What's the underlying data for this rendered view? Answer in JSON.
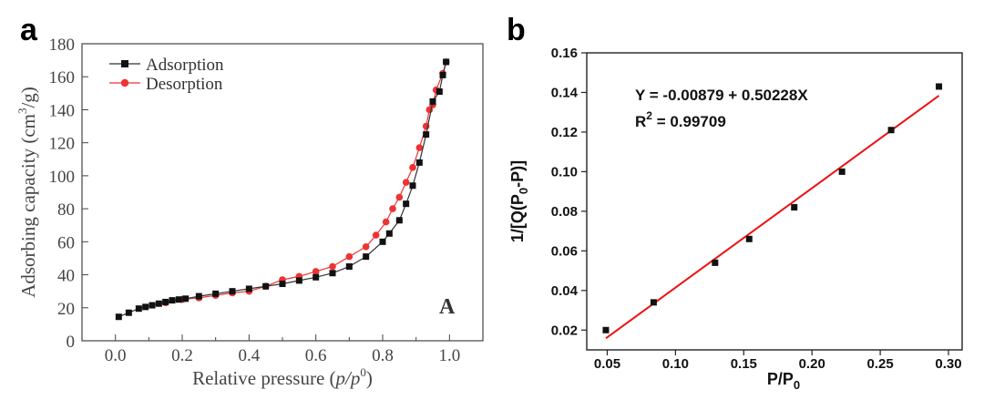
{
  "chart_data": [
    {
      "panel_label": "a",
      "type": "line",
      "inset_label": "A",
      "xlabel": {
        "prefix": "Relative pressure (",
        "var": "p/p",
        "sup": "0",
        "suffix": ")"
      },
      "ylabel": {
        "prefix": "Adsorbing capacity (cm",
        "sup": "3",
        "suffix": "/g)"
      },
      "xlim": [
        -0.1,
        1.1
      ],
      "ylim": [
        0,
        180
      ],
      "xticks": [
        0.0,
        0.2,
        0.4,
        0.6,
        0.8,
        1.0
      ],
      "xtick_labels": [
        "0.0",
        "0.2",
        "0.4",
        "0.6",
        "0.8",
        "1.0"
      ],
      "yticks": [
        0,
        20,
        40,
        60,
        80,
        100,
        120,
        140,
        160,
        180
      ],
      "ytick_labels": [
        "0",
        "20",
        "40",
        "60",
        "80",
        "100",
        "120",
        "140",
        "160",
        "180"
      ],
      "legend_position": "top-left",
      "series": [
        {
          "name": "Adsorption",
          "color": "#333333",
          "marker": "square",
          "x": [
            0.01,
            0.04,
            0.07,
            0.09,
            0.11,
            0.13,
            0.15,
            0.17,
            0.19,
            0.21,
            0.25,
            0.3,
            0.35,
            0.4,
            0.45,
            0.5,
            0.55,
            0.6,
            0.65,
            0.7,
            0.75,
            0.8,
            0.82,
            0.85,
            0.87,
            0.89,
            0.91,
            0.93,
            0.95,
            0.97,
            0.98,
            0.99
          ],
          "y": [
            14.5,
            17,
            19.5,
            20.5,
            21.5,
            22.5,
            23.5,
            24.5,
            25,
            25.5,
            27,
            28.5,
            30,
            31.5,
            33,
            34.5,
            36.5,
            38.5,
            41,
            45,
            51,
            60,
            65,
            73,
            83,
            94,
            108,
            125,
            145,
            151,
            161,
            169
          ]
        },
        {
          "name": "Desorption",
          "color": "#ee3333",
          "marker": "circle",
          "x": [
            0.99,
            0.98,
            0.96,
            0.95,
            0.94,
            0.93,
            0.91,
            0.89,
            0.87,
            0.85,
            0.83,
            0.81,
            0.78,
            0.75,
            0.7,
            0.65,
            0.6,
            0.55,
            0.5,
            0.45,
            0.4,
            0.35,
            0.3,
            0.25,
            0.2,
            0.15
          ],
          "y": [
            169,
            162,
            152,
            143,
            140,
            130,
            117,
            105,
            96,
            87,
            80,
            72,
            64,
            57,
            51,
            45,
            42,
            39,
            37,
            33,
            30,
            29,
            27.5,
            26,
            25,
            23
          ]
        }
      ]
    },
    {
      "panel_label": "b",
      "type": "scatter",
      "xlabel": {
        "prefix": "P/P",
        "sub": "0"
      },
      "ylabel": {
        "prefix": "1/[Q(P",
        "sub": "0",
        "suffix": "-P)]"
      },
      "xlim": [
        0.035,
        0.31
      ],
      "ylim": [
        0.01,
        0.16
      ],
      "xticks": [
        0.05,
        0.1,
        0.15,
        0.2,
        0.25,
        0.3
      ],
      "xtick_labels": [
        "0.05",
        "0.10",
        "0.15",
        "0.20",
        "0.25",
        "0.30"
      ],
      "yticks": [
        0.02,
        0.04,
        0.06,
        0.08,
        0.1,
        0.12,
        0.14,
        0.16
      ],
      "ytick_labels": [
        "0.02",
        "0.04",
        "0.06",
        "0.08",
        "0.10",
        "0.12",
        "0.14",
        "0.16"
      ],
      "points": {
        "color": "#111111",
        "marker": "square",
        "x": [
          0.049,
          0.084,
          0.129,
          0.154,
          0.187,
          0.222,
          0.258,
          0.293
        ],
        "y": [
          0.02,
          0.034,
          0.054,
          0.066,
          0.082,
          0.1,
          0.121,
          0.143
        ]
      },
      "fit": {
        "color": "#ee1111",
        "intercept": -0.00879,
        "slope": 0.50228,
        "x_range": [
          0.049,
          0.293
        ]
      },
      "annotations": {
        "equation": "Y = -0.00879 + 0.50228X",
        "r2_prefix": "R",
        "r2_sup": "2",
        "r2_suffix": " = 0.99709"
      }
    }
  ]
}
